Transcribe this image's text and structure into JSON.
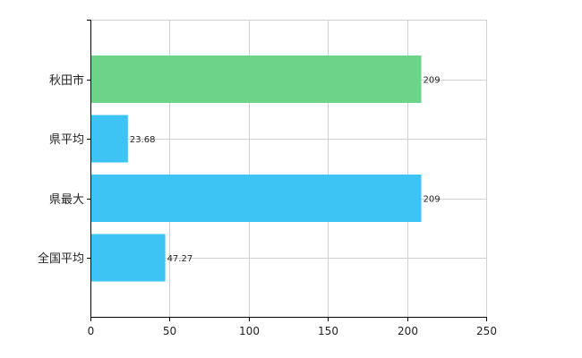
{
  "chart_data": {
    "type": "bar",
    "orientation": "horizontal",
    "categories": [
      "秋田市",
      "県平均",
      "県最大",
      "全国平均"
    ],
    "values": [
      209,
      23.68,
      209,
      47.27
    ],
    "value_labels": [
      "209",
      "23.68",
      "209",
      "47.27"
    ],
    "colors": [
      "#6dd389",
      "#3ec3f5",
      "#3ec3f5",
      "#3ec3f5"
    ],
    "xlim": [
      0,
      250
    ],
    "xticks": [
      0,
      50,
      100,
      150,
      200,
      250
    ],
    "xtick_labels": [
      "0",
      "50",
      "100",
      "150",
      "200",
      "250"
    ],
    "grid": true,
    "grid_color": "#d0d0d0",
    "axis_color": "#000000",
    "title": "",
    "xlabel": "",
    "ylabel": ""
  }
}
